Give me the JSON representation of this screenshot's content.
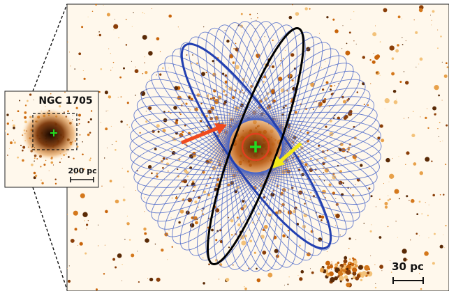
{
  "inset": {
    "title": "NGC 1705",
    "scale_label": "200 pc"
  },
  "main": {
    "scale_label": "30 pc"
  },
  "colors": {
    "background_light": "#fff8ec",
    "star_orange": "#c8640a",
    "star_dark": "#5a2a06",
    "ellipse_blue": "#2340b0",
    "ellipse_thin": "#4a66c8",
    "ellipse_black": "#000000",
    "circle_red": "#e0401e",
    "cross_green": "#22dd22",
    "arrow_red": "#f04a1e",
    "arrow_yellow": "#f2ea1a"
  },
  "markers": {
    "center_cross": "green-plus-icon",
    "arrow_left": "red-arrow-icon",
    "arrow_right": "yellow-arrow-icon"
  }
}
